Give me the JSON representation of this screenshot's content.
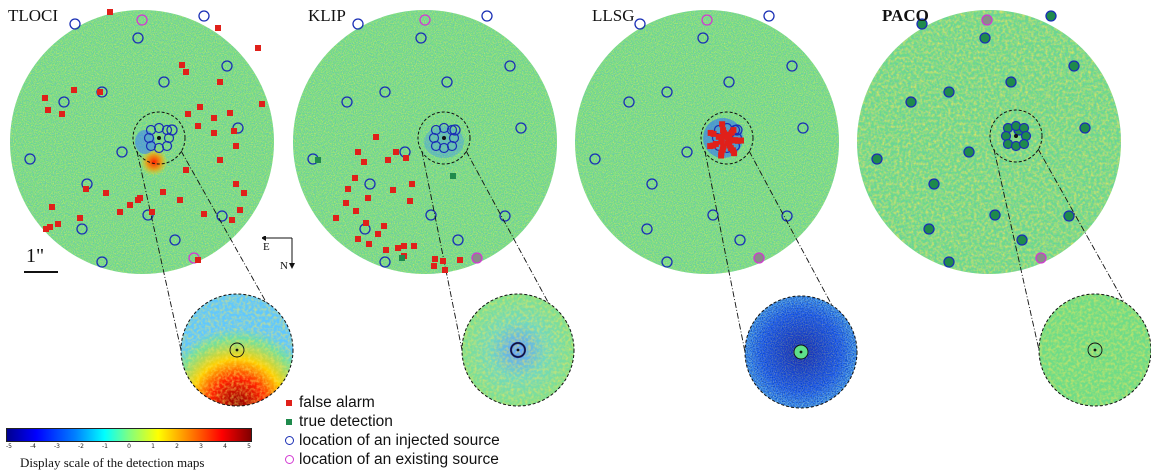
{
  "panels": [
    {
      "title": "TLOCI",
      "bold": false
    },
    {
      "title": "KLIP",
      "bold": false
    },
    {
      "title": "LLSG",
      "bold": false
    },
    {
      "title": "PACO",
      "bold": true
    }
  ],
  "scalebar": {
    "label": "1\""
  },
  "compass": {
    "east": "E",
    "north": "N"
  },
  "legend": [
    {
      "label": "false alarm",
      "marker": "square",
      "color": "#e0201a"
    },
    {
      "label": "true detection",
      "marker": "square",
      "color": "#1f8a4c"
    },
    {
      "label": "location of an injected source",
      "marker": "circle",
      "color": "#1a2fb5"
    },
    {
      "label": "location of an existing source",
      "marker": "circle",
      "color": "#d23ad2"
    }
  ],
  "colorbar": {
    "ticks": [
      "-5",
      "-4",
      "-3",
      "-2",
      "-1",
      "0",
      "1",
      "2",
      "3",
      "4",
      "5"
    ],
    "caption": "Display scale of the detection maps"
  },
  "colors": {
    "map_background": "#6edc88",
    "false_alarm": "#e0201a",
    "true_detection": "#1f8a4c",
    "injected_source": "#1a2fb5",
    "existing_source": "#d23ad2"
  }
}
